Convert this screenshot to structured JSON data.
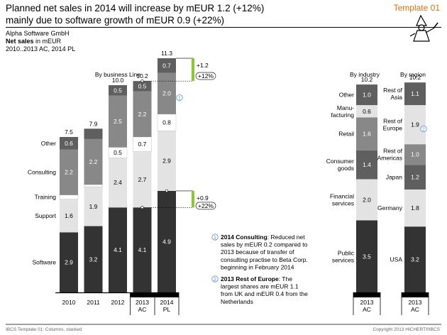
{
  "header": {
    "title_line1": "Planned net sales in 2014 will increase by mEUR 1.2 (+12%)",
    "title_line2": "mainly due to software growth of mEUR 0.9 (+22%)",
    "template_label": "Template 01",
    "company": "Alpha Software GmbH",
    "measure_bold": "Net sales",
    "measure_unit": " in mEUR",
    "period": "2010..2013 AC, 2014 PL"
  },
  "colors": {
    "software": "#333333",
    "support": "#e3e3e3",
    "training": "#ffffff",
    "consulting": "#888888",
    "other": "#5f5f5f",
    "accent_green": "#8cc63f",
    "note_blue": "#5b8fd6",
    "template_orange": "#e07010"
  },
  "icons": {
    "mascot": "wizard-mascot-icon"
  },
  "chart_data": [
    {
      "type": "bar",
      "stacked": true,
      "title": "By business Line",
      "categories": [
        "2010",
        "2011",
        "2012",
        "2013\nAC",
        "2014\nPL"
      ],
      "category_labels": [
        [
          "2010"
        ],
        [
          "2011"
        ],
        [
          "2012"
        ],
        [
          "2013",
          "AC"
        ],
        [
          "2014",
          "PL"
        ]
      ],
      "series": [
        {
          "name": "Software",
          "values": [
            2.9,
            3.2,
            4.1,
            4.1,
            4.9
          ],
          "labels": [
            "2.9",
            "3.2",
            "4.1",
            "4.1",
            "4.9"
          ]
        },
        {
          "name": "Support",
          "values": [
            1.6,
            1.9,
            2.4,
            2.7,
            2.9
          ],
          "labels": [
            "1.6",
            "1.9",
            "2.4",
            "2.7",
            "2.9"
          ]
        },
        {
          "name": "Training",
          "values": [
            0.2,
            0.1,
            0.5,
            0.7,
            0.8
          ],
          "labels": [
            "",
            "",
            "0.5",
            "0.7",
            "0.8"
          ]
        },
        {
          "name": "Consulting",
          "values": [
            2.2,
            2.2,
            2.5,
            2.2,
            2.0
          ],
          "labels": [
            "2.2",
            "2.2",
            "2.5",
            "2.2",
            "2.0"
          ]
        },
        {
          "name": "Other",
          "values": [
            0.6,
            0.5,
            0.5,
            0.5,
            0.7
          ],
          "labels": [
            "0.6",
            "",
            "0.5",
            "0.5",
            "0.7"
          ]
        }
      ],
      "totals": [
        "7.5",
        "7.9",
        "10.0",
        "10.2",
        "11.3"
      ],
      "highlight_categories": [
        "2013\nAC",
        "2014\nPL"
      ],
      "deltas": [
        {
          "value": "+1.2",
          "percent": "+12%"
        },
        {
          "value": "+0.9",
          "percent": "+22%"
        }
      ],
      "annotation_marker": "1"
    },
    {
      "type": "bar",
      "stacked": true,
      "title": "By industry",
      "category_labels": [
        [
          "2013",
          "AC"
        ]
      ],
      "segments": [
        {
          "name": [
            "Public",
            "services"
          ],
          "value": 3.5,
          "label": "3.5"
        },
        {
          "name": [
            "Financial",
            "services"
          ],
          "value": 2.0,
          "label": "2.0"
        },
        {
          "name": [
            "Consumer",
            "goods"
          ],
          "value": 1.4,
          "label": "1.4"
        },
        {
          "name": [
            "Retail"
          ],
          "value": 1.6,
          "label": "1.6"
        },
        {
          "name": [
            "Manu-",
            "facturing"
          ],
          "value": 0.6,
          "label": "0.6"
        },
        {
          "name": [
            "Other"
          ],
          "value": 1.0,
          "label": "1.0"
        }
      ],
      "total": "10.2"
    },
    {
      "type": "bar",
      "stacked": true,
      "title": "By region",
      "category_labels": [
        [
          "2013",
          "AC"
        ]
      ],
      "segments": [
        {
          "name": [
            "USA"
          ],
          "value": 3.2,
          "label": "3.2"
        },
        {
          "name": [
            "Germany"
          ],
          "value": 1.8,
          "label": "1.8"
        },
        {
          "name": [
            "Japan"
          ],
          "value": 1.2,
          "label": "1.2"
        },
        {
          "name": [
            "Rest of",
            "Americas"
          ],
          "value": 1.0,
          "label": "1.0"
        },
        {
          "name": [
            "Rest of",
            "Europe"
          ],
          "value": 1.9,
          "label": "1.9"
        },
        {
          "name": [
            "Rest of",
            "Asia"
          ],
          "value": 1.1,
          "label": "1.1"
        }
      ],
      "total": "10.2",
      "annotation_marker": "2"
    }
  ],
  "notes": [
    {
      "number": "1",
      "title": "2014 Consulting",
      "lines": [
        ": Reduced net",
        "sales by mEUR 0.2 compared to",
        "2013 because of transfer of",
        "consulting practise to Beta Corp.",
        "beginning in February 2014"
      ]
    },
    {
      "number": "2",
      "title": "2013 Rest of Europe",
      "lines": [
        ": The",
        "largest shares are mEUR 1.1",
        "from UK and mEUR 0.4 from the",
        "Netherlands"
      ]
    }
  ],
  "footer": {
    "left": "IBCS Template 01: Columns, stacked",
    "right": "Copyright 2013 HICHERT®IBCS"
  }
}
